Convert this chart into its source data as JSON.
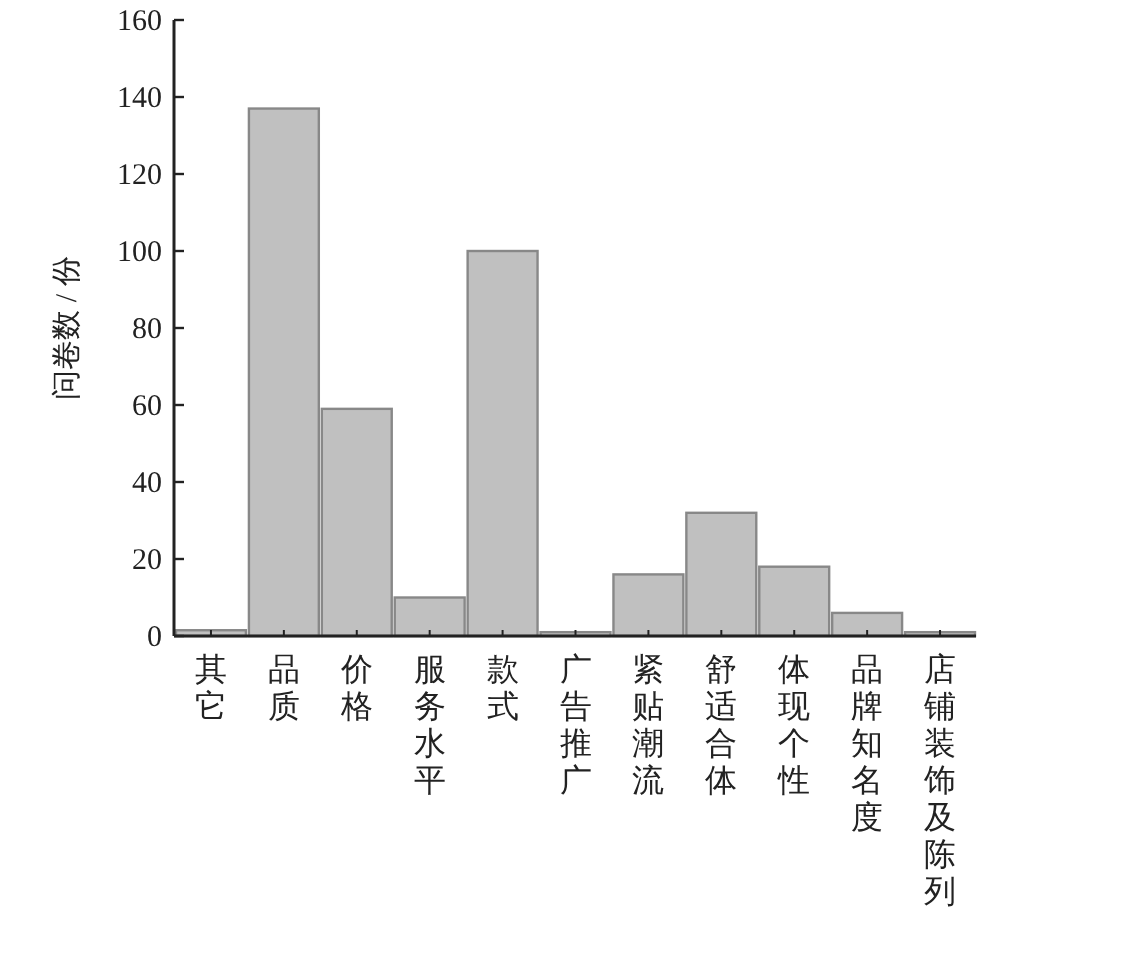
{
  "chart_data": {
    "type": "bar",
    "ylabel": "问卷数 / 份",
    "categories": [
      "其它",
      "品质",
      "价格",
      "服务水平",
      "款式",
      "广告推广",
      "紧贴潮流",
      "舒适合体",
      "体现个性",
      "品牌知名度",
      "店铺装饰及陈列"
    ],
    "values": [
      1.5,
      137,
      59,
      10,
      100,
      1,
      16,
      32,
      18,
      6,
      1
    ],
    "color": "#c0c0c0",
    "ylim": [
      0,
      160
    ],
    "yticks": [
      0,
      20,
      40,
      60,
      80,
      100,
      120,
      140,
      160
    ],
    "grid": false
  }
}
